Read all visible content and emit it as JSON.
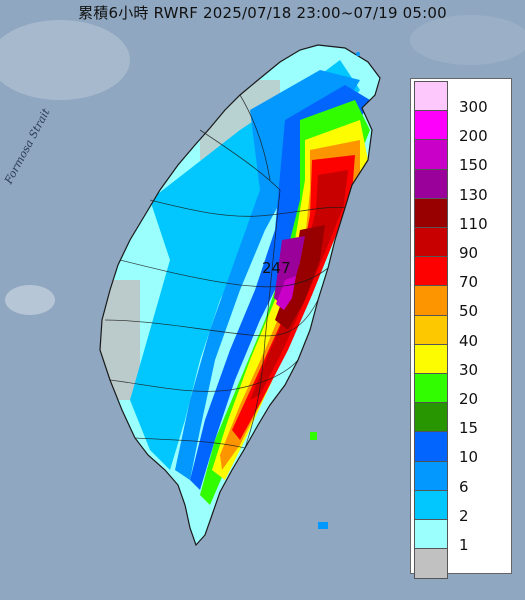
{
  "header": {
    "title": "累積6小時 RWRF 2025/07/18 23:00~07/19 05:00"
  },
  "map": {
    "strait_label": "Formosa Strait",
    "max_value": "247"
  },
  "legend": {
    "items": [
      {
        "label": "300",
        "color": "#fdc9fd"
      },
      {
        "label": "200",
        "color": "#fc00fc"
      },
      {
        "label": "150",
        "color": "#c800c8"
      },
      {
        "label": "130",
        "color": "#9a009a"
      },
      {
        "label": "110",
        "color": "#980000"
      },
      {
        "label": "90",
        "color": "#c80000"
      },
      {
        "label": "70",
        "color": "#fd0000"
      },
      {
        "label": "50",
        "color": "#fc9500"
      },
      {
        "label": "40",
        "color": "#fdc800"
      },
      {
        "label": "30",
        "color": "#fefc00"
      },
      {
        "label": "20",
        "color": "#32fc00"
      },
      {
        "label": "15",
        "color": "#279600"
      },
      {
        "label": "10",
        "color": "#0265fe"
      },
      {
        "label": "6",
        "color": "#0298fe"
      },
      {
        "label": "2",
        "color": "#01c7fe"
      },
      {
        "label": "1",
        "color": "#9bfffe"
      },
      {
        "label": "",
        "color": "#c1c1c1"
      }
    ]
  },
  "colors": {
    "sea": "#8fa7c0",
    "island_outline": "#1a1a1a"
  }
}
